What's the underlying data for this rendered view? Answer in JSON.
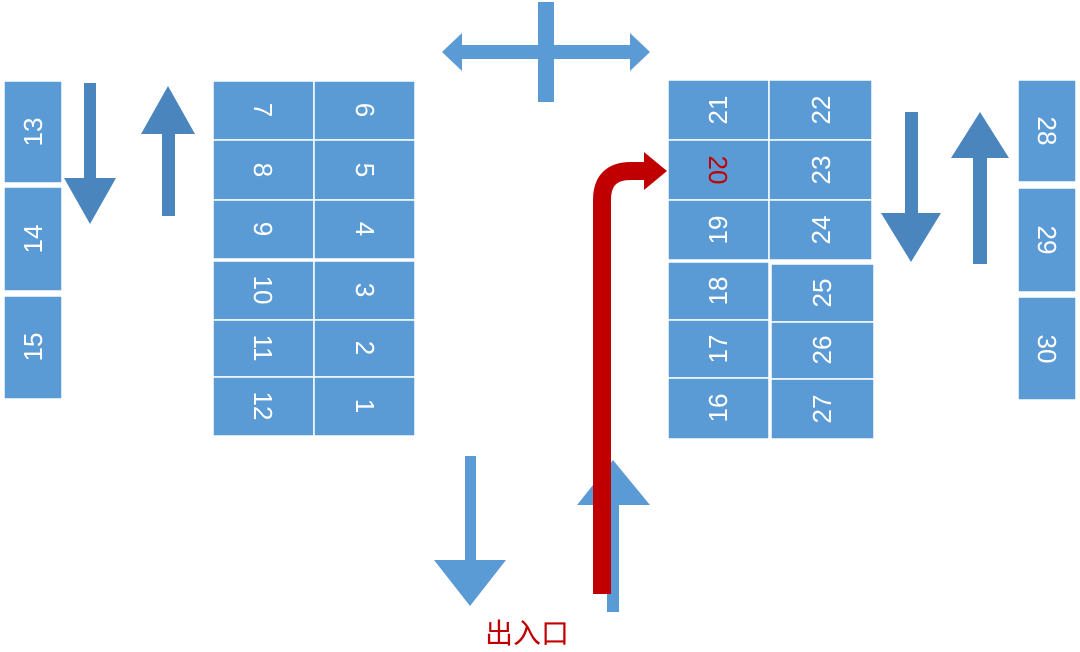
{
  "colors": {
    "slot": "#5b9bd5",
    "arrow": "#5b9bd5",
    "highlight": "#c00000",
    "route": "#c00000"
  },
  "slots": {
    "s1": "1",
    "s2": "2",
    "s3": "3",
    "s4": "4",
    "s5": "5",
    "s6": "6",
    "s7": "7",
    "s8": "8",
    "s9": "9",
    "s10": "10",
    "s11": "11",
    "s12": "12",
    "s13": "13",
    "s14": "14",
    "s15": "15",
    "s16": "16",
    "s17": "17",
    "s18": "18",
    "s19": "19",
    "s20": "20",
    "s21": "21",
    "s22": "22",
    "s23": "23",
    "s24": "24",
    "s25": "25",
    "s26": "26",
    "s27": "27",
    "s28": "28",
    "s29": "29",
    "s30": "30"
  },
  "highlighted_slot": "20",
  "entrance_label": "出入口"
}
